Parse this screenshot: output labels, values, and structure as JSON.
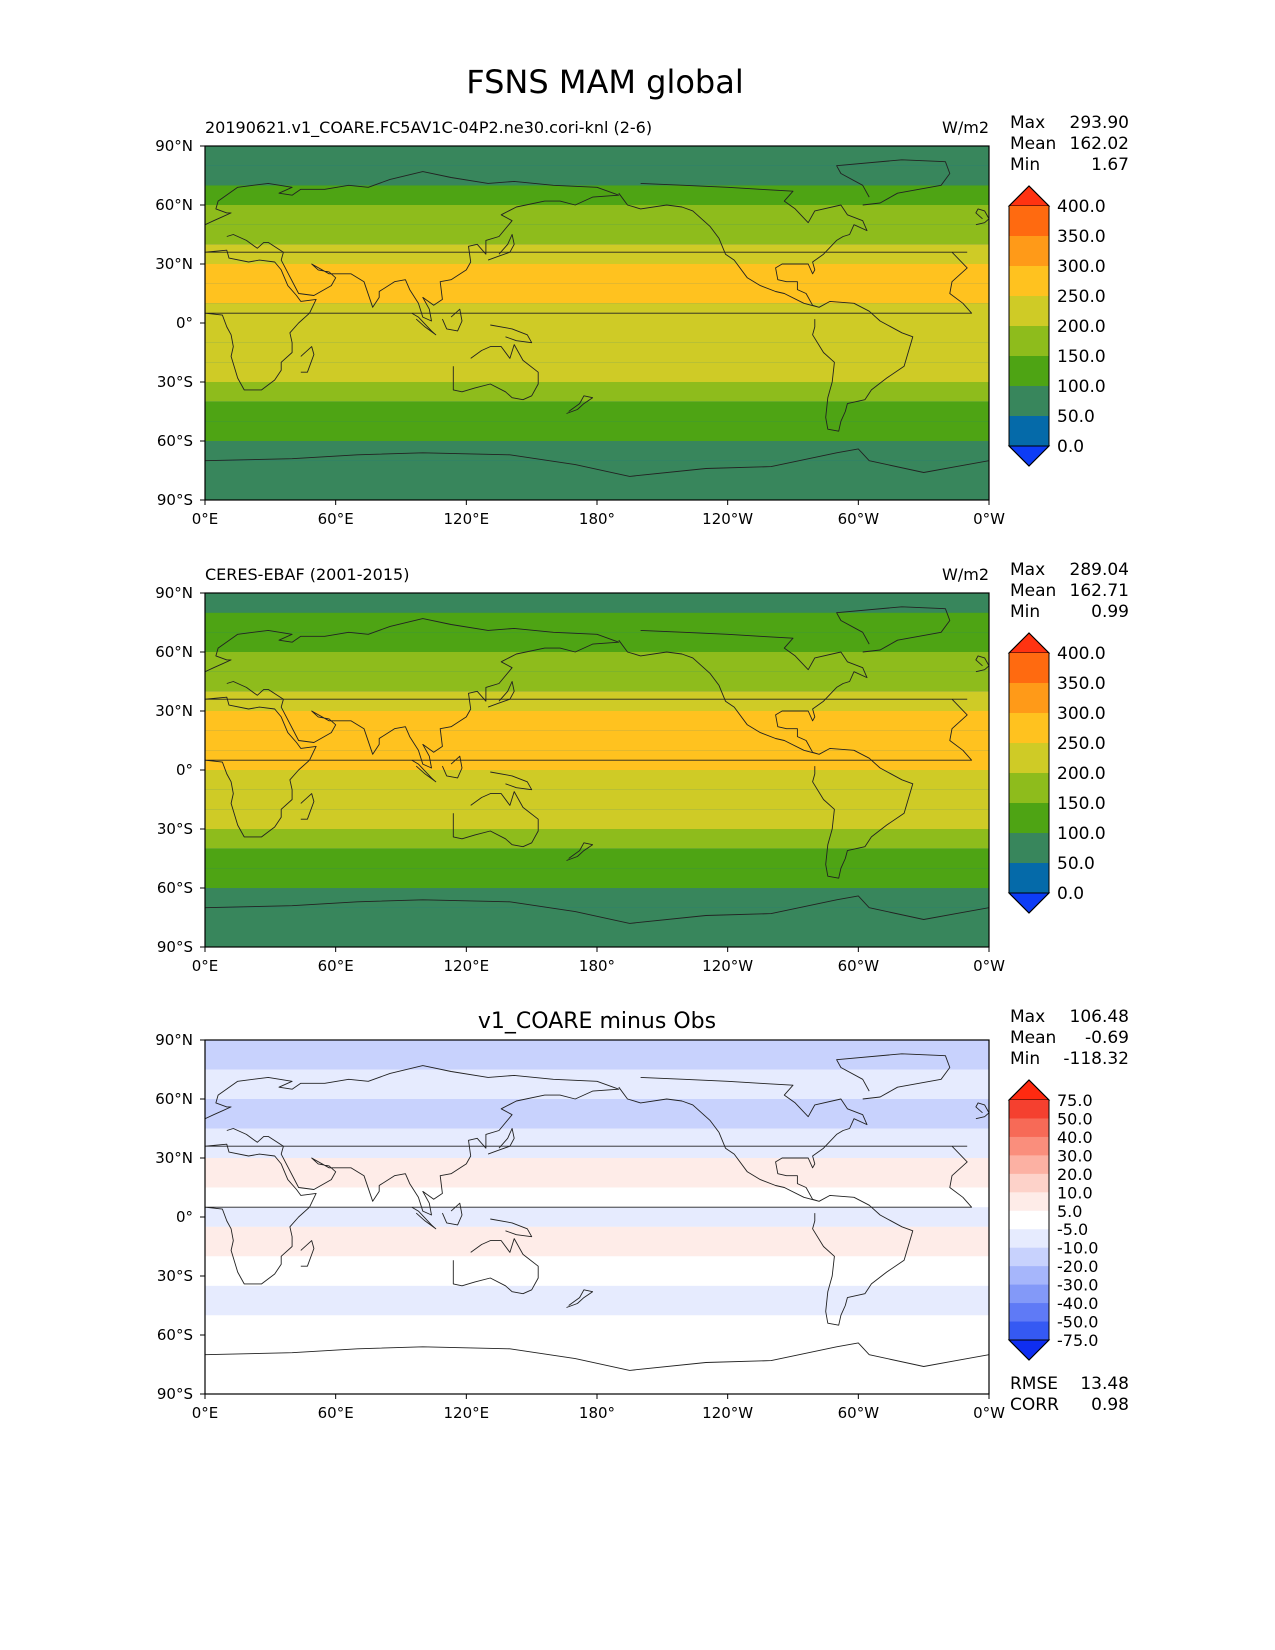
{
  "figure": {
    "title": "FSNS MAM global"
  },
  "chart_data": [
    {
      "type": "heatmap",
      "title": "20190621.v1_COARE.FC5AV1C-04P2.ne30.cori-knl (2-6)",
      "units": "W/m2",
      "stats": {
        "max_label": "Max",
        "max": "293.90",
        "mean_label": "Mean",
        "mean": "162.02",
        "min_label": "Min",
        "min": "1.67"
      },
      "x_ticks": [
        "0°E",
        "60°E",
        "120°E",
        "180°",
        "120°W",
        "60°W",
        "0°W"
      ],
      "y_ticks": [
        "90°N",
        "60°N",
        "30°N",
        "0°",
        "30°S",
        "60°S",
        "90°S"
      ],
      "colorbar": {
        "labels": [
          "400.0",
          "350.0",
          "300.0",
          "250.0",
          "200.0",
          "150.0",
          "100.0",
          "50.0",
          "0.0"
        ],
        "colors": [
          "#ff3311",
          "#ff6a10",
          "#ff9a18",
          "#ffc21f",
          "#cfcb26",
          "#8ebc1c",
          "#4ea414",
          "#38865c",
          "#056aa9",
          "#0d3cf6"
        ]
      },
      "zonal_profile": [
        {
          "lat_from": 90,
          "lat_to": 80,
          "value": 50
        },
        {
          "lat_from": 80,
          "lat_to": 70,
          "value": 50
        },
        {
          "lat_from": 70,
          "lat_to": 60,
          "value": 100
        },
        {
          "lat_from": 60,
          "lat_to": 50,
          "value": 150
        },
        {
          "lat_from": 50,
          "lat_to": 40,
          "value": 150
        },
        {
          "lat_from": 40,
          "lat_to": 30,
          "value": 200
        },
        {
          "lat_from": 30,
          "lat_to": 20,
          "value": 250
        },
        {
          "lat_from": 20,
          "lat_to": 10,
          "value": 250
        },
        {
          "lat_from": 10,
          "lat_to": 0,
          "value": 200
        },
        {
          "lat_from": 0,
          "lat_to": -10,
          "value": 200
        },
        {
          "lat_from": -10,
          "lat_to": -20,
          "value": 200
        },
        {
          "lat_from": -20,
          "lat_to": -30,
          "value": 200
        },
        {
          "lat_from": -30,
          "lat_to": -40,
          "value": 150
        },
        {
          "lat_from": -40,
          "lat_to": -50,
          "value": 100
        },
        {
          "lat_from": -50,
          "lat_to": -60,
          "value": 100
        },
        {
          "lat_from": -60,
          "lat_to": -70,
          "value": 50
        },
        {
          "lat_from": -70,
          "lat_to": -90,
          "value": 50
        }
      ]
    },
    {
      "type": "heatmap",
      "title": "CERES-EBAF (2001-2015)",
      "units": "W/m2",
      "stats": {
        "max_label": "Max",
        "max": "289.04",
        "mean_label": "Mean",
        "mean": "162.71",
        "min_label": "Min",
        "min": "0.99"
      },
      "x_ticks": [
        "0°E",
        "60°E",
        "120°E",
        "180°",
        "120°W",
        "60°W",
        "0°W"
      ],
      "y_ticks": [
        "90°N",
        "60°N",
        "30°N",
        "0°",
        "30°S",
        "60°S",
        "90°S"
      ],
      "colorbar": {
        "labels": [
          "400.0",
          "350.0",
          "300.0",
          "250.0",
          "200.0",
          "150.0",
          "100.0",
          "50.0",
          "0.0"
        ],
        "colors": [
          "#ff3311",
          "#ff6a10",
          "#ff9a18",
          "#ffc21f",
          "#cfcb26",
          "#8ebc1c",
          "#4ea414",
          "#38865c",
          "#056aa9",
          "#0d3cf6"
        ]
      },
      "zonal_profile": [
        {
          "lat_from": 90,
          "lat_to": 80,
          "value": 50
        },
        {
          "lat_from": 80,
          "lat_to": 70,
          "value": 100
        },
        {
          "lat_from": 70,
          "lat_to": 60,
          "value": 100
        },
        {
          "lat_from": 60,
          "lat_to": 50,
          "value": 150
        },
        {
          "lat_from": 50,
          "lat_to": 40,
          "value": 150
        },
        {
          "lat_from": 40,
          "lat_to": 30,
          "value": 200
        },
        {
          "lat_from": 30,
          "lat_to": 20,
          "value": 250
        },
        {
          "lat_from": 20,
          "lat_to": 10,
          "value": 250
        },
        {
          "lat_from": 10,
          "lat_to": 0,
          "value": 250
        },
        {
          "lat_from": 0,
          "lat_to": -10,
          "value": 200
        },
        {
          "lat_from": -10,
          "lat_to": -20,
          "value": 200
        },
        {
          "lat_from": -20,
          "lat_to": -30,
          "value": 200
        },
        {
          "lat_from": -30,
          "lat_to": -40,
          "value": 150
        },
        {
          "lat_from": -40,
          "lat_to": -50,
          "value": 100
        },
        {
          "lat_from": -50,
          "lat_to": -60,
          "value": 100
        },
        {
          "lat_from": -60,
          "lat_to": -70,
          "value": 50
        },
        {
          "lat_from": -70,
          "lat_to": -90,
          "value": 50
        }
      ]
    },
    {
      "type": "heatmap",
      "title": "v1_COARE minus Obs",
      "units": "",
      "stats": {
        "max_label": "Max",
        "max": "106.48",
        "mean_label": "Mean",
        "mean": "-0.69",
        "min_label": "Min",
        "min": "-118.32"
      },
      "extra_stats": {
        "rmse_label": "RMSE",
        "rmse": "13.48",
        "corr_label": "CORR",
        "corr": "0.98"
      },
      "x_ticks": [
        "0°E",
        "60°E",
        "120°E",
        "180°",
        "120°W",
        "60°W",
        "0°W"
      ],
      "y_ticks": [
        "90°N",
        "60°N",
        "30°N",
        "0°",
        "30°S",
        "60°S",
        "90°S"
      ],
      "colorbar": {
        "labels": [
          "75.0",
          "50.0",
          "40.0",
          "30.0",
          "20.0",
          "10.0",
          "5.0",
          "-5.0",
          "-10.0",
          "-20.0",
          "-30.0",
          "-40.0",
          "-50.0",
          "-75.0"
        ],
        "colors": [
          "#ff2a10",
          "#f5402f",
          "#f76a57",
          "#fa8e7c",
          "#fcb1a3",
          "#fdd2c9",
          "#feece8",
          "#ffffff",
          "#e6ebfe",
          "#c8d2fd",
          "#a6b6fb",
          "#8399f8",
          "#5f7af6",
          "#3559f3",
          "#0f2ef1"
        ]
      },
      "zonal_profile": [
        {
          "lat_from": 90,
          "lat_to": 75,
          "value": -12
        },
        {
          "lat_from": 75,
          "lat_to": 60,
          "value": -8
        },
        {
          "lat_from": 60,
          "lat_to": 45,
          "value": -15
        },
        {
          "lat_from": 45,
          "lat_to": 30,
          "value": -6
        },
        {
          "lat_from": 30,
          "lat_to": 15,
          "value": 8
        },
        {
          "lat_from": 15,
          "lat_to": 5,
          "value": -3
        },
        {
          "lat_from": 5,
          "lat_to": -5,
          "value": -8
        },
        {
          "lat_from": -5,
          "lat_to": -20,
          "value": 6
        },
        {
          "lat_from": -20,
          "lat_to": -35,
          "value": -2
        },
        {
          "lat_from": -35,
          "lat_to": -50,
          "value": -8
        },
        {
          "lat_from": -50,
          "lat_to": -90,
          "value": 0
        }
      ]
    }
  ]
}
